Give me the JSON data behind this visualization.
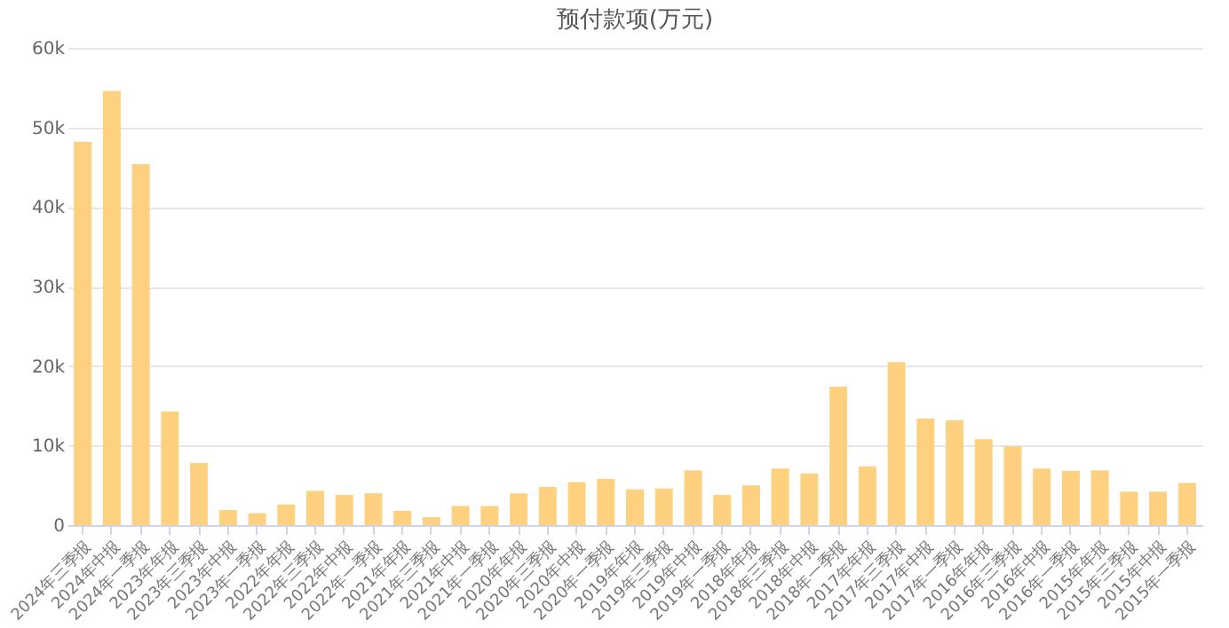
{
  "chart_data": {
    "type": "bar",
    "title": "预付款项(万元)",
    "categories": [
      "2024年三季报",
      "2024年中报",
      "2024年一季报",
      "2023年年报",
      "2023年三季报",
      "2023年中报",
      "2023年一季报",
      "2022年年报",
      "2022年三季报",
      "2022年中报",
      "2022年一季报",
      "2021年年报",
      "2021年三季报",
      "2021年中报",
      "2021年一季报",
      "2020年年报",
      "2020年三季报",
      "2020年中报",
      "2020年一季报",
      "2019年年报",
      "2019年三季报",
      "2019年中报",
      "2019年一季报",
      "2018年年报",
      "2018年三季报",
      "2018年中报",
      "2018年一季报",
      "2017年年报",
      "2017年三季报",
      "2017年中报",
      "2017年一季报",
      "2016年年报",
      "2016年三季报",
      "2016年中报",
      "2016年一季报",
      "2015年年报",
      "2015年三季报",
      "2015年中报",
      "2015年一季报"
    ],
    "values": [
      48200,
      54600,
      45400,
      14300,
      7800,
      1900,
      1500,
      2600,
      4300,
      3800,
      4000,
      1800,
      1000,
      2400,
      2400,
      4000,
      4800,
      5400,
      5800,
      4500,
      4600,
      6900,
      3800,
      5000,
      7100,
      6500,
      17400,
      7400,
      20500,
      13400,
      13200,
      10800,
      9900,
      7100,
      6800,
      6900,
      4200,
      4200,
      5300
    ],
    "color": "#fdd17f",
    "ylim": [
      0,
      60000
    ],
    "yticks": [
      {
        "value": 0,
        "label": "0"
      },
      {
        "value": 10000,
        "label": "10k"
      },
      {
        "value": 20000,
        "label": "20k"
      },
      {
        "value": 30000,
        "label": "30k"
      },
      {
        "value": 40000,
        "label": "40k"
      },
      {
        "value": 50000,
        "label": "50k"
      },
      {
        "value": 60000,
        "label": "60k"
      }
    ],
    "grid": "y"
  }
}
